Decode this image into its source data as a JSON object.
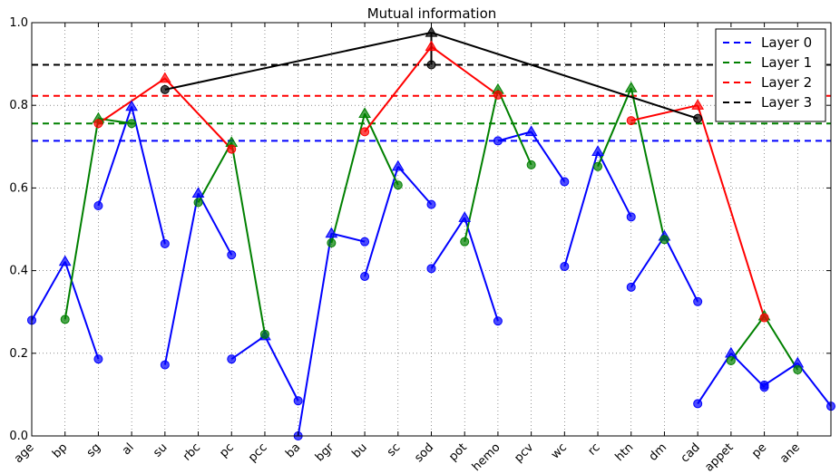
{
  "chart_data": {
    "type": "line",
    "title": "Mutual information",
    "xlabel": "",
    "ylabel": "",
    "ylim": [
      0.0,
      1.0
    ],
    "yticks": [
      "0.0",
      "0.2",
      "0.4",
      "0.6",
      "0.8",
      "1.0"
    ],
    "categories": [
      "age",
      "bp",
      "sg",
      "al",
      "su",
      "rbc",
      "pc",
      "pcc",
      "ba",
      "bgr",
      "bu",
      "sc",
      "sod",
      "pot",
      "hemo",
      "pcv",
      "wc",
      "rc",
      "htn",
      "dm",
      "cad",
      "appet",
      "pe",
      "ane"
    ],
    "grid": true,
    "legend_position": "top-right",
    "colors": {
      "layer0": "#0000ff",
      "layer1": "#008000",
      "layer2": "#ff0000",
      "layer3": "#000000"
    },
    "thresholds": [
      {
        "name": "Layer 0",
        "value": 0.714,
        "color": "#0000ff"
      },
      {
        "name": "Layer 1",
        "value": 0.756,
        "color": "#008000"
      },
      {
        "name": "Layer 2",
        "value": 0.823,
        "color": "#ff0000"
      },
      {
        "name": "Layer 3",
        "value": 0.898,
        "color": "#000000"
      }
    ],
    "groups": [
      {
        "layer": 0,
        "color": "#0000ff",
        "parent": 1,
        "children": [
          0,
          2
        ],
        "parent_value": 0.422,
        "child_values": [
          0.28,
          0.186
        ]
      },
      {
        "layer": 0,
        "color": "#0000ff",
        "parent": 3,
        "children": [
          2,
          4
        ],
        "parent_value": 0.797,
        "child_values": [
          0.557,
          0.465
        ]
      },
      {
        "layer": 0,
        "color": "#0000ff",
        "parent": 5,
        "children": [
          4,
          6
        ],
        "parent_value": 0.587,
        "child_values": [
          0.172,
          0.438
        ]
      },
      {
        "layer": 0,
        "color": "#0000ff",
        "parent": 7,
        "children": [
          6,
          8
        ],
        "parent_value": 0.242,
        "child_values": [
          0.186,
          0.085
        ]
      },
      {
        "layer": 0,
        "color": "#0000ff",
        "parent": 9,
        "children": [
          8,
          10
        ],
        "parent_value": 0.49,
        "child_values": [
          0.0,
          0.47
        ]
      },
      {
        "layer": 0,
        "color": "#0000ff",
        "parent": 11,
        "children": [
          10,
          12
        ],
        "parent_value": 0.652,
        "child_values": [
          0.386,
          0.56
        ]
      },
      {
        "layer": 0,
        "color": "#0000ff",
        "parent": 13,
        "children": [
          12,
          14
        ],
        "parent_value": 0.528,
        "child_values": [
          0.405,
          0.278
        ]
      },
      {
        "layer": 0,
        "color": "#0000ff",
        "parent": 15,
        "children": [
          14,
          16
        ],
        "parent_value": 0.736,
        "child_values": [
          0.714,
          0.615
        ]
      },
      {
        "layer": 0,
        "color": "#0000ff",
        "parent": 17,
        "children": [
          16,
          18
        ],
        "parent_value": 0.688,
        "child_values": [
          0.41,
          0.53
        ]
      },
      {
        "layer": 0,
        "color": "#0000ff",
        "parent": 19,
        "children": [
          18,
          20
        ],
        "parent_value": 0.483,
        "child_values": [
          0.36,
          0.325
        ]
      },
      {
        "layer": 0,
        "color": "#0000ff",
        "parent": 21,
        "children": [
          20,
          22
        ],
        "parent_value": 0.2,
        "child_values": [
          0.078,
          0.118
        ]
      },
      {
        "layer": 0,
        "color": "#0000ff",
        "parent": 23,
        "children": [
          22,
          24
        ],
        "parent_value": 0.176,
        "child_values": [
          0.123,
          0.072
        ]
      },
      {
        "layer": 1,
        "color": "#008000",
        "parent": 2,
        "children": [
          1,
          3
        ],
        "parent_value": 0.768,
        "child_values": [
          0.282,
          0.756
        ]
      },
      {
        "layer": 1,
        "color": "#008000",
        "parent": 6,
        "children": [
          5,
          7
        ],
        "parent_value": 0.71,
        "child_values": [
          0.565,
          0.246
        ]
      },
      {
        "layer": 1,
        "color": "#008000",
        "parent": 10,
        "children": [
          9,
          11
        ],
        "parent_value": 0.78,
        "child_values": [
          0.467,
          0.607
        ]
      },
      {
        "layer": 1,
        "color": "#008000",
        "parent": 14,
        "children": [
          13,
          15
        ],
        "parent_value": 0.838,
        "child_values": [
          0.47,
          0.656
        ]
      },
      {
        "layer": 1,
        "color": "#008000",
        "parent": 18,
        "children": [
          17,
          19
        ],
        "parent_value": 0.842,
        "child_values": [
          0.652,
          0.475
        ]
      },
      {
        "layer": 1,
        "color": "#008000",
        "parent": 22,
        "children": [
          21,
          23
        ],
        "parent_value": 0.29,
        "child_values": [
          0.182,
          0.16
        ]
      },
      {
        "layer": 2,
        "color": "#ff0000",
        "parent": 4,
        "children": [
          2,
          6
        ],
        "parent_value": 0.865,
        "child_values": [
          0.756,
          0.694
        ]
      },
      {
        "layer": 2,
        "color": "#ff0000",
        "parent": 12,
        "children": [
          10,
          14
        ],
        "parent_value": 0.942,
        "child_values": [
          0.736,
          0.825
        ]
      },
      {
        "layer": 2,
        "color": "#ff0000",
        "parent": 20,
        "children": [
          18,
          22
        ],
        "parent_value": 0.8,
        "child_values": [
          0.763,
          0.286
        ]
      },
      {
        "layer": 3,
        "color": "#000000",
        "parent": 12,
        "children": [
          4,
          12,
          20
        ],
        "parent_value": 0.976,
        "child_values": [
          0.838,
          0.898,
          0.768
        ]
      }
    ]
  }
}
